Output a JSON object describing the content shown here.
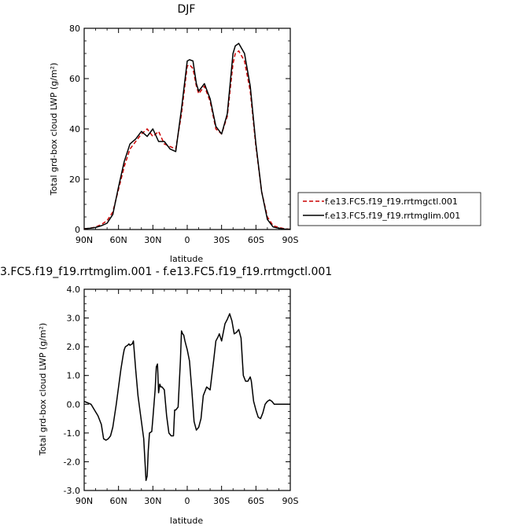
{
  "chart_data": [
    {
      "type": "line",
      "title": "DJF",
      "xlabel": "latitude",
      "ylabel": "Total grd-box cloud LWP (g/m²)",
      "xlim": [
        -90,
        90
      ],
      "ylim": [
        0,
        80
      ],
      "xticks": [
        -90,
        -60,
        -30,
        0,
        30,
        60,
        90
      ],
      "xtick_labels": [
        "90N",
        "60N",
        "30N",
        "0",
        "30S",
        "60S",
        "90S"
      ],
      "yticks": [
        0,
        20,
        40,
        60,
        80
      ],
      "ytick_labels": [
        "0",
        "20",
        "40",
        "60",
        "80"
      ],
      "legend_position": "right",
      "series": [
        {
          "name": "f.e13.FC5.f19_f19.rrtmgctl.001",
          "color": "#cc0000",
          "dash": "dashed",
          "x": [
            -90,
            -85,
            -80,
            -75,
            -70,
            -65,
            -60,
            -55,
            -50,
            -45,
            -40,
            -35,
            -30,
            -25,
            -20,
            -15,
            -10,
            -5,
            0,
            2,
            5,
            8,
            10,
            15,
            20,
            25,
            30,
            35,
            40,
            42,
            45,
            50,
            55,
            60,
            65,
            70,
            75,
            80,
            85,
            90
          ],
          "y": [
            0.3,
            0.5,
            1,
            2,
            3.5,
            7,
            16,
            25,
            32,
            35,
            38,
            40,
            37,
            39,
            34,
            33,
            32,
            46,
            65,
            65.5,
            64,
            57,
            54,
            57,
            51,
            40,
            38,
            45,
            66,
            70,
            71,
            67,
            55,
            33,
            15,
            5,
            1.5,
            0.8,
            0.3,
            0.1
          ]
        },
        {
          "name": "f.e13.FC5.f19_f19.rrtmglim.001",
          "color": "#000000",
          "dash": "solid",
          "x": [
            -90,
            -85,
            -80,
            -75,
            -70,
            -65,
            -60,
            -55,
            -50,
            -45,
            -40,
            -35,
            -30,
            -25,
            -20,
            -15,
            -10,
            -5,
            0,
            2,
            5,
            8,
            10,
            15,
            20,
            25,
            30,
            35,
            40,
            42,
            45,
            50,
            55,
            60,
            65,
            70,
            75,
            80,
            85,
            90
          ],
          "y": [
            0.3,
            0.5,
            0.8,
            1.5,
            2.5,
            6,
            17,
            27,
            34,
            36,
            39,
            37,
            40,
            35,
            35,
            32,
            31,
            48,
            67,
            67.5,
            67,
            58,
            55,
            58,
            52,
            41,
            38,
            46,
            70,
            73,
            74,
            70,
            57,
            34,
            15,
            4,
            1,
            0.5,
            0.2,
            0.1
          ]
        }
      ]
    },
    {
      "type": "line",
      "title": "3.FC5.f19_f19.rrtmglim.001 - f.e13.FC5.f19_f19.rrtmgctl.001",
      "xlabel": "latitude",
      "ylabel": "Total grd-box cloud LWP (g/m²)",
      "xlim": [
        -90,
        90
      ],
      "ylim": [
        -3,
        4
      ],
      "xticks": [
        -90,
        -60,
        -30,
        0,
        30,
        60,
        90
      ],
      "xtick_labels": [
        "90N",
        "60N",
        "30N",
        "0",
        "30S",
        "60S",
        "90S"
      ],
      "yticks": [
        -3,
        -2,
        -1,
        0,
        1,
        2,
        3,
        4
      ],
      "ytick_labels": [
        "-3.0",
        "-2.0",
        "-1.0",
        "0.0",
        "1.0",
        "2.0",
        "3.0",
        "4.0"
      ],
      "series": [
        {
          "color": "#000000",
          "x": [
            -90,
            -87,
            -84,
            -81,
            -78,
            -75,
            -73,
            -71,
            -69,
            -67,
            -65,
            -62,
            -60,
            -58,
            -56,
            -55,
            -54,
            -52,
            -51,
            -50,
            -48,
            -47,
            -45,
            -43,
            -41,
            -38,
            -36,
            -35,
            -34,
            -33,
            -31,
            -30,
            -28,
            -27,
            -26,
            -25,
            -24,
            -23,
            -22,
            -20,
            -18,
            -16,
            -14,
            -12,
            -11,
            -10,
            -8,
            -6,
            -5,
            -4,
            -3,
            -2,
            -1,
            0,
            2,
            4,
            6,
            8,
            10,
            12,
            14,
            17,
            20,
            23,
            25,
            27,
            28,
            30,
            33,
            35,
            37,
            39,
            41,
            43,
            45,
            47,
            49,
            51,
            53,
            55,
            56,
            58,
            60,
            62,
            64,
            66,
            68,
            70,
            72,
            74,
            76,
            78,
            80,
            82,
            85,
            88,
            90
          ],
          "y": [
            0.1,
            0.05,
            0,
            -0.2,
            -0.4,
            -0.7,
            -1.2,
            -1.25,
            -1.2,
            -1.1,
            -0.8,
            0,
            0.6,
            1.2,
            1.7,
            1.9,
            2,
            2.05,
            2.1,
            2.05,
            2.1,
            2.2,
            1.2,
            0.3,
            -0.3,
            -1.2,
            -2.65,
            -2.5,
            -1.6,
            -1,
            -0.95,
            -0.5,
            0.5,
            1.3,
            1.4,
            0.4,
            0.7,
            0.6,
            0.6,
            0.5,
            -0.4,
            -1,
            -1.1,
            -1.1,
            -0.2,
            -0.2,
            -0.1,
            1.5,
            2.55,
            2.45,
            2.4,
            2.2,
            2.05,
            1.9,
            1.5,
            0.5,
            -0.6,
            -0.9,
            -0.8,
            -0.5,
            0.3,
            0.6,
            0.5,
            1.5,
            2.2,
            2.35,
            2.45,
            2.2,
            2.8,
            2.95,
            3.15,
            2.9,
            2.45,
            2.5,
            2.6,
            2.3,
            1,
            0.8,
            0.8,
            0.95,
            0.8,
            0.1,
            -0.2,
            -0.45,
            -0.5,
            -0.3,
            0,
            0.1,
            0.15,
            0.1,
            0,
            0,
            0,
            0,
            0,
            0,
            0
          ]
        }
      ]
    }
  ]
}
